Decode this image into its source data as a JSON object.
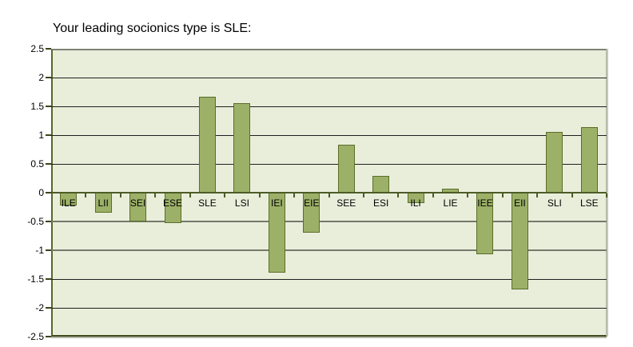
{
  "title": "Your leading socionics type is SLE:",
  "chart_data": {
    "type": "bar",
    "title": "Your leading socionics type is SLE:",
    "categories": [
      "ILE",
      "LII",
      "SEI",
      "ESE",
      "SLE",
      "LSI",
      "IEI",
      "EIE",
      "SEE",
      "ESI",
      "ILI",
      "LIE",
      "IEE",
      "EII",
      "SLI",
      "LSE"
    ],
    "values": [
      -0.21,
      -0.33,
      -0.48,
      -0.51,
      1.66,
      1.56,
      -1.38,
      -0.68,
      0.83,
      0.29,
      -0.17,
      0.07,
      -1.05,
      -1.67,
      1.05,
      1.14
    ],
    "xlabel": "",
    "ylabel": "",
    "ylim": [
      -2.5,
      2.5
    ],
    "ytick_step": 0.5,
    "yticks": [
      "2.5",
      "2",
      "1.5",
      "1",
      "0.5",
      "0",
      "-0.5",
      "-1",
      "-1.5",
      "-2",
      "-2.5"
    ],
    "gray_gridlines_at": [
      -0.5,
      -1
    ],
    "grid": "horizontal",
    "legend": "none",
    "colors": {
      "page_bg": "#FFFFFF",
      "plot_bg": "#E9EEDB",
      "bar_fill": "#9CB068",
      "bar_border": "#5C6D28",
      "axis": "#4D5C26",
      "gridline": "#1F1F1F",
      "gridline_gray": "#75796A",
      "text": "#000000"
    }
  }
}
